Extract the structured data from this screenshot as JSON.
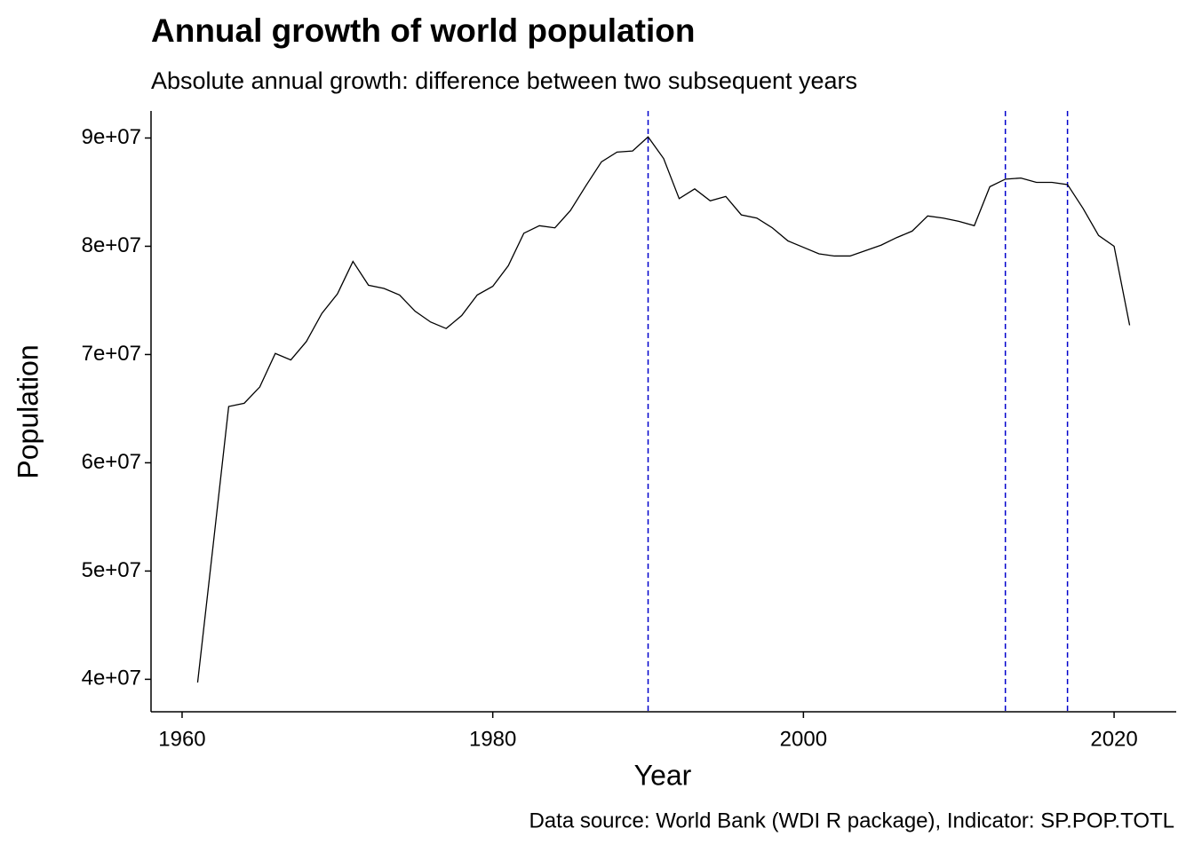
{
  "chart_data": {
    "type": "line",
    "title": "Annual growth of world population",
    "subtitle": "Absolute annual growth: difference between two subsequent years",
    "x_label": "Year",
    "y_label": "Population",
    "caption": "Data source: World Bank (WDI R package), Indicator: SP.POP.TOTL",
    "x": [
      1961,
      1962,
      1963,
      1964,
      1965,
      1966,
      1967,
      1968,
      1969,
      1970,
      1971,
      1972,
      1973,
      1974,
      1975,
      1976,
      1977,
      1978,
      1979,
      1980,
      1981,
      1982,
      1983,
      1984,
      1985,
      1986,
      1987,
      1988,
      1989,
      1990,
      1991,
      1992,
      1993,
      1994,
      1995,
      1996,
      1997,
      1998,
      1999,
      2000,
      2001,
      2002,
      2003,
      2004,
      2005,
      2006,
      2007,
      2008,
      2009,
      2010,
      2011,
      2012,
      2013,
      2014,
      2015,
      2016,
      2017,
      2018,
      2019,
      2020,
      2021
    ],
    "series": [
      {
        "name": "Population",
        "color": "#000000",
        "values": [
          39700000,
          52400000,
          65200000,
          65500000,
          67000000,
          70100000,
          69500000,
          71200000,
          73800000,
          75600000,
          78600000,
          76400000,
          76100000,
          75500000,
          74000000,
          73000000,
          72400000,
          73600000,
          75500000,
          76300000,
          78200000,
          81200000,
          81900000,
          81700000,
          83300000,
          85600000,
          87800000,
          88700000,
          88800000,
          90100000,
          88100000,
          84400000,
          85300000,
          84200000,
          84600000,
          82900000,
          82600000,
          81700000,
          80500000,
          79900000,
          79300000,
          79100000,
          79100000,
          79600000,
          80100000,
          80800000,
          81400000,
          82800000,
          82600000,
          82300000,
          81900000,
          85500000,
          86200000,
          86300000,
          85900000,
          85900000,
          85700000,
          83500000,
          81000000,
          80000000,
          72700000
        ]
      }
    ],
    "vlines": [
      1990,
      2013,
      2017
    ],
    "vline_color": "#0000cc",
    "xlim": [
      1958,
      2024
    ],
    "xticks": [
      1960,
      1980,
      2000,
      2020
    ],
    "ylim": [
      37000000,
      92500000
    ],
    "yticks": [
      {
        "value": 40000000,
        "label": "4e+07"
      },
      {
        "value": 50000000,
        "label": "5e+07"
      },
      {
        "value": 60000000,
        "label": "6e+07"
      },
      {
        "value": 70000000,
        "label": "7e+07"
      },
      {
        "value": 80000000,
        "label": "8e+07"
      },
      {
        "value": 90000000,
        "label": "9e+07"
      }
    ],
    "grid": false
  }
}
